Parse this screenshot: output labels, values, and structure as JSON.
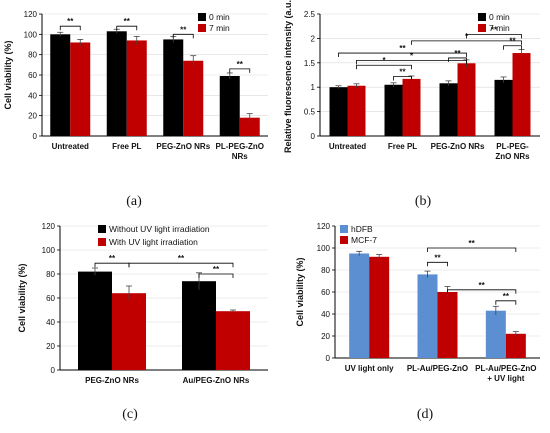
{
  "chart_data": [
    {
      "type": "bar",
      "panel_label": "(a)",
      "ylabel": "Cell viability (%)",
      "ylim": [
        0,
        120
      ],
      "yticks": [
        0,
        20,
        40,
        60,
        80,
        100,
        120
      ],
      "categories": [
        "Untreated",
        "Free PL",
        "PEG-ZnO NRs",
        "PL-PEG-ZnO NRs"
      ],
      "category_lines": [
        [
          "Untreated"
        ],
        [
          "Free PL"
        ],
        [
          "PEG-ZnO NRs"
        ],
        [
          "PL-PEG-ZnO",
          "NRs"
        ]
      ],
      "series": [
        {
          "name": "0 min",
          "color": "#000000",
          "values": [
            100,
            103,
            95,
            59
          ],
          "errors": [
            2,
            2,
            3,
            3
          ]
        },
        {
          "name": "7 min",
          "color": "#c00000",
          "values": [
            92,
            94,
            74,
            18
          ],
          "errors": [
            3,
            4,
            5,
            4
          ]
        }
      ],
      "legend_position": "top-right",
      "significance": [
        "**",
        "**",
        "**",
        "**"
      ]
    },
    {
      "type": "bar",
      "panel_label": "(b)",
      "ylabel": "Relative fluorescence intensity (a.u.)",
      "ylim": [
        0,
        2.5
      ],
      "yticks": [
        0,
        0.5,
        1,
        1.5,
        2,
        2.5
      ],
      "categories": [
        "Untreated",
        "Free PL",
        "PEG-ZnO NRs",
        "PL-PEG-ZnO NRs"
      ],
      "category_lines": [
        [
          "Untreated"
        ],
        [
          "Free PL"
        ],
        [
          "PEG-ZnO NRs"
        ],
        [
          "PL-PEG-",
          "ZnO NRs"
        ]
      ],
      "series": [
        {
          "name": "0 min",
          "color": "#000000",
          "values": [
            1.0,
            1.05,
            1.08,
            1.15
          ],
          "errors": [
            0.03,
            0.04,
            0.05,
            0.06
          ]
        },
        {
          "name": "7 min",
          "color": "#c00000",
          "values": [
            1.03,
            1.17,
            1.49,
            1.7
          ],
          "errors": [
            0.04,
            0.06,
            0.07,
            0.07
          ]
        }
      ],
      "legend_position": "top-right",
      "significance": [
        "*",
        "*",
        "**",
        "**",
        "**",
        "*",
        "**",
        "**"
      ]
    },
    {
      "type": "bar",
      "panel_label": "(c)",
      "ylabel": "Cell viability (%)",
      "ylim": [
        0,
        120
      ],
      "yticks": [
        0,
        20,
        40,
        60,
        80,
        100,
        120
      ],
      "categories": [
        "PEG-ZnO NRs",
        "Au/PEG-ZnO NRs"
      ],
      "category_lines": [
        [
          "PEG-ZnO NRs"
        ],
        [
          "Au/PEG-ZnO NRs"
        ]
      ],
      "series": [
        {
          "name": "Without UV light irradiation",
          "color": "#000000",
          "values": [
            82,
            74
          ],
          "errors": [
            3,
            7
          ]
        },
        {
          "name": "With UV light irradiation",
          "color": "#c00000",
          "values": [
            64,
            49
          ],
          "errors": [
            6,
            1
          ]
        }
      ],
      "legend_position": "top-right",
      "significance": [
        "**",
        "**",
        "**"
      ]
    },
    {
      "type": "bar",
      "panel_label": "(d)",
      "ylabel": "Cell viability (%)",
      "ylim": [
        0,
        120
      ],
      "yticks": [
        0,
        20,
        40,
        60,
        80,
        100,
        120
      ],
      "categories": [
        "UV light only",
        "PL-Au/PEG-ZnO",
        "PL-Au/PEG-ZnO + UV light"
      ],
      "category_lines": [
        [
          "UV light only"
        ],
        [
          "PL-Au/PEG-ZnO"
        ],
        [
          "PL-Au/PEG-ZnO",
          "+ UV light"
        ]
      ],
      "series": [
        {
          "name": "hDFB",
          "color": "#5b8fd1",
          "values": [
            95,
            76,
            43
          ],
          "errors": [
            2,
            3,
            4
          ]
        },
        {
          "name": "MCF-7",
          "color": "#c00000",
          "values": [
            92,
            60,
            22
          ],
          "errors": [
            2,
            5,
            2
          ]
        }
      ],
      "legend_position": "top-left",
      "significance": [
        "**",
        "**",
        "**",
        "**"
      ]
    }
  ]
}
